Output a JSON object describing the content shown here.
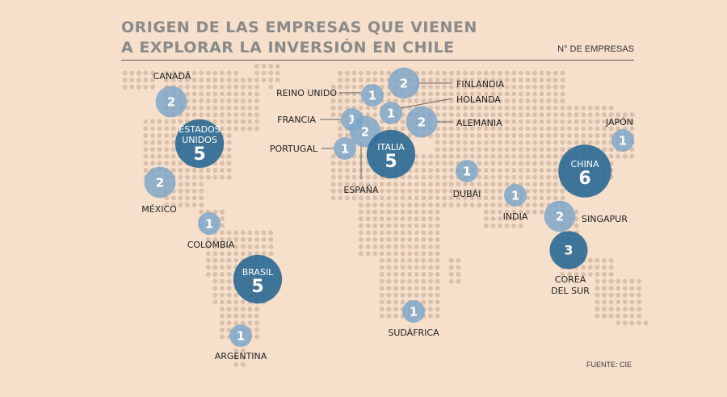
{
  "title": {
    "line1": "ORIGEN DE LAS EMPRESAS QUE VIENEN",
    "line2": "A EXPLORAR LA INVERSIÓN EN CHILE"
  },
  "legend_label": "N° DE EMPRESAS",
  "source": "FUENTE: CIE",
  "colors": {
    "background": "#f6dfcb",
    "land_dot": "#d8c1ac",
    "bubble_light": "#7da6c9",
    "bubble_dark": "#2f6b95",
    "label_line": "#666666"
  },
  "countries": [
    {
      "key": "canada",
      "name": "CANADÁ",
      "value": 2
    },
    {
      "key": "usa",
      "name": "ESTADOS UNIDOS",
      "value": 5
    },
    {
      "key": "mexico",
      "name": "MÉXICO",
      "value": 2
    },
    {
      "key": "colombia",
      "name": "COLOMBIA",
      "value": 1
    },
    {
      "key": "brasil",
      "name": "BRASIL",
      "value": 5
    },
    {
      "key": "argentina",
      "name": "ARGENTINA",
      "value": 1
    },
    {
      "key": "reino_unido",
      "name": "REINO UNIDO",
      "value": 1
    },
    {
      "key": "finlandia",
      "name": "FINLANDIA",
      "value": 2
    },
    {
      "key": "holanda",
      "name": "HOLANDA",
      "value": 1
    },
    {
      "key": "alemania",
      "name": "ALEMANIA",
      "value": 2
    },
    {
      "key": "francia",
      "name": "FRANCIA",
      "value": 1
    },
    {
      "key": "espana",
      "name": "ESPAÑA",
      "value": 2
    },
    {
      "key": "portugal",
      "name": "PORTUGAL",
      "value": 1
    },
    {
      "key": "italia",
      "name": "ITALIA",
      "value": 5
    },
    {
      "key": "dubai",
      "name": "DUBÁI",
      "value": 1
    },
    {
      "key": "sudafrica",
      "name": "SUDÁFRICA",
      "value": 1
    },
    {
      "key": "india",
      "name": "INDIA",
      "value": 1
    },
    {
      "key": "china",
      "name": "CHINA",
      "value": 6
    },
    {
      "key": "japon",
      "name": "JAPÓN",
      "value": 1
    },
    {
      "key": "singapur",
      "name": "SINGAPUR",
      "value": 2
    },
    {
      "key": "corea_del_sur",
      "name": "COREA DEL SUR",
      "value": 3
    }
  ]
}
